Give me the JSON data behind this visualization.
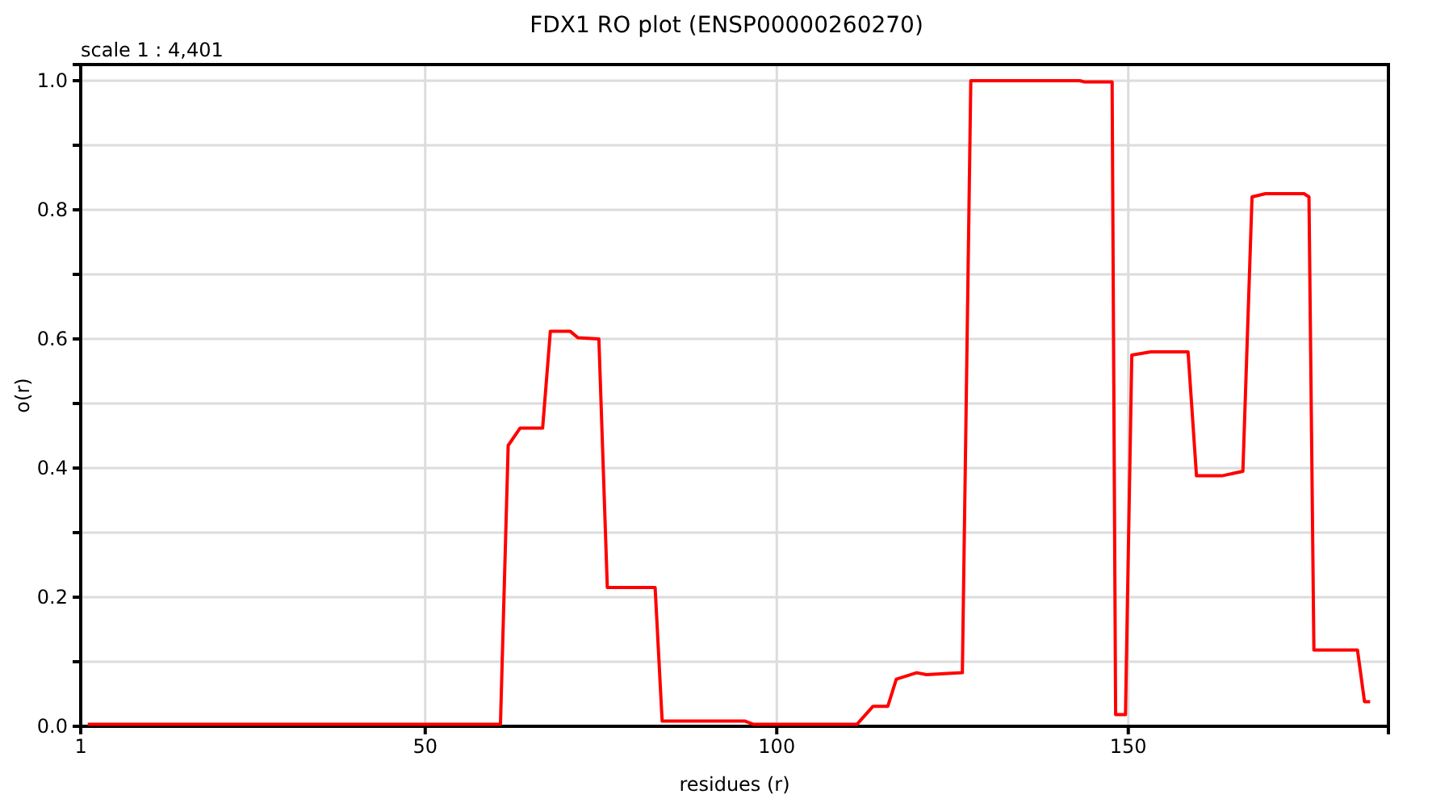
{
  "chart_data": {
    "type": "line",
    "title": "FDX1 RO plot (ENSP00000260270)",
    "annotations": [
      "scale 1 : 4,401"
    ],
    "xlabel": "residues (r)",
    "ylabel": "o(r)",
    "xlim": [
      1,
      187
    ],
    "ylim": [
      0,
      1.025
    ],
    "xticks": [
      1,
      50,
      100,
      150
    ],
    "yticks": [
      "0.0",
      {
        "value": 0.1,
        "label": null
      },
      {
        "value": 0.2,
        "label": "0.2"
      },
      {
        "value": 0.3,
        "label": null
      },
      {
        "value": 0.4,
        "label": "0.4"
      },
      {
        "value": 0.5,
        "label": null
      },
      {
        "value": 0.6,
        "label": "0.6"
      },
      {
        "value": 0.7,
        "label": null
      },
      {
        "value": 0.8,
        "label": "0.8"
      },
      {
        "value": 0.9,
        "label": null
      },
      {
        "value": 1,
        "label": "1.0"
      }
    ],
    "grid": true,
    "marker": "none",
    "line_style": "solid",
    "series": [
      {
        "color": "#ff0000",
        "x": [
          2,
          60.7,
          61.8,
          63.5,
          66.7,
          67.8,
          70.6,
          71.7,
          74.7,
          75.9,
          82.7,
          83.7,
          95.5,
          96.7,
          111.4,
          113.7,
          115.8,
          117,
          119.9,
          121.3,
          126.4,
          127.6,
          143.1,
          143.8,
          147.7,
          148.2,
          149.6,
          150.5,
          153.2,
          158.5,
          159.7,
          163.3,
          166.3,
          167.6,
          169.5,
          175,
          175.7,
          176.4,
          182.6,
          183.6,
          184.4
        ],
        "values": [
          0.003,
          0.003,
          0.435,
          0.462,
          0.462,
          0.612,
          0.612,
          0.602,
          0.6,
          0.215,
          0.215,
          0.008,
          0.008,
          0.003,
          0.003,
          0.031,
          0.031,
          0.073,
          0.083,
          0.08,
          0.083,
          1.0,
          1.0,
          0.998,
          0.998,
          0.018,
          0.018,
          0.575,
          0.58,
          0.58,
          0.388,
          0.388,
          0.395,
          0.82,
          0.825,
          0.825,
          0.82,
          0.118,
          0.118,
          0.038,
          0.038
        ]
      }
    ]
  }
}
